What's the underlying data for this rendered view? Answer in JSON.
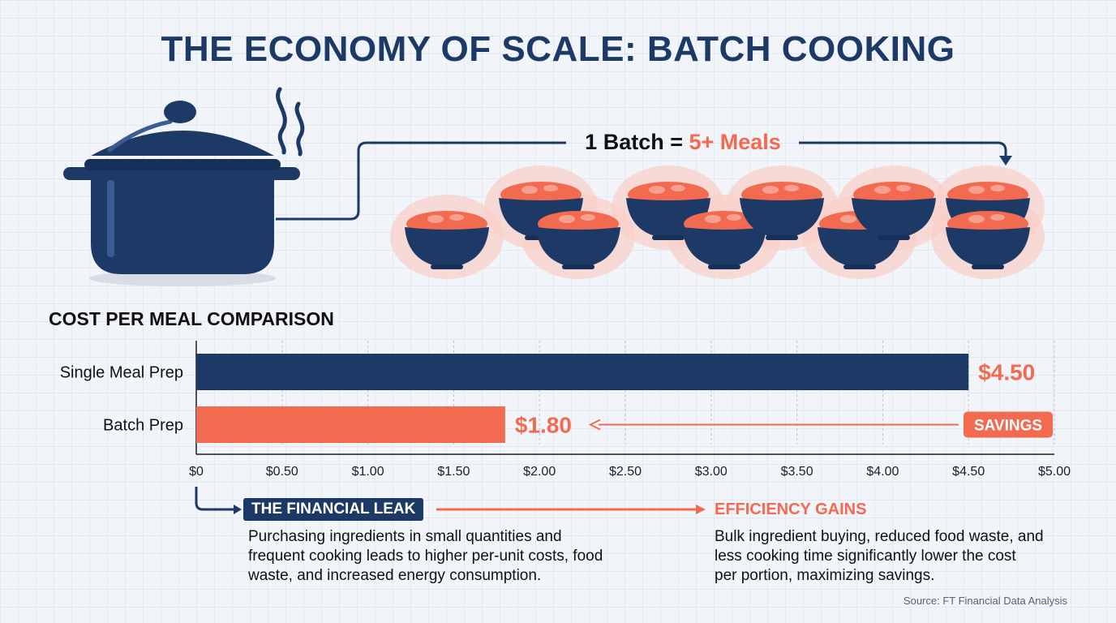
{
  "title": "THE ECONOMY OF SCALE: BATCH COOKING",
  "hero": {
    "equation_lead": "1 Batch = ",
    "equation_highlight": "5+ Meals"
  },
  "chart_data": {
    "type": "bar",
    "orientation": "horizontal",
    "title": "COST PER MEAL COMPARISON",
    "categories": [
      "Single Meal Prep",
      "Batch Prep"
    ],
    "values": [
      4.5,
      1.8
    ],
    "value_labels": [
      "$4.50",
      "$1.80"
    ],
    "colors": [
      "#1d3a66",
      "#f26a4f"
    ],
    "xlim": [
      0,
      5
    ],
    "xticks": [
      0,
      0.5,
      1,
      1.5,
      2,
      2.5,
      3,
      3.5,
      4,
      4.5,
      5
    ],
    "xtick_labels": [
      "$0",
      "$0.50",
      "$1.00",
      "$1.50",
      "$2.00",
      "$2.50",
      "$3.00",
      "$3.50",
      "$4.00",
      "$4.50",
      "$5.00"
    ],
    "grid": true,
    "annotation": "SAVINGS"
  },
  "leak": {
    "title": "THE FINANCIAL LEAK",
    "lines": [
      "Purchasing ingredients in small quantities and",
      "frequent cooking leads to higher per-unit costs, food",
      "waste, and increased energy consumption."
    ]
  },
  "gains": {
    "title": "EFFICIENCY GAINS",
    "lines": [
      "Bulk ingredient buying, reduced food waste, and",
      "less cooking time significantly lower the cost",
      "per portion, maximizing savings."
    ]
  },
  "source": "Source: FT Financial Data Analysis",
  "colors": {
    "navy": "#1d3a66",
    "coral": "#f26a4f",
    "blush": "#f9cfc6"
  }
}
